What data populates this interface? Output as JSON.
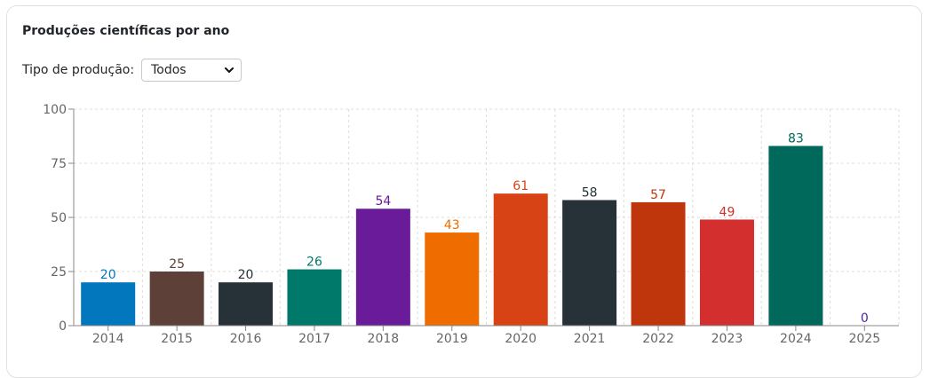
{
  "panel": {
    "title": "Produções científicas por ano",
    "filter_label": "Tipo de produção:",
    "filter_value": "Todos"
  },
  "icons": {
    "select_arrow": "chevron-down-icon"
  },
  "chart_data": {
    "type": "bar",
    "title": "",
    "xlabel": "",
    "ylabel": "",
    "categories": [
      "2014",
      "2015",
      "2016",
      "2017",
      "2018",
      "2019",
      "2020",
      "2021",
      "2022",
      "2023",
      "2024",
      "2025"
    ],
    "values": [
      20,
      25,
      20,
      26,
      54,
      43,
      61,
      58,
      57,
      49,
      83,
      0
    ],
    "colors": [
      "#0277bd",
      "#5d4037",
      "#263238",
      "#00796b",
      "#6a1b9a",
      "#ef6c00",
      "#d84315",
      "#263238",
      "#bf360c",
      "#d32f2f",
      "#00695c",
      "#4527a0"
    ],
    "ylim": [
      0,
      100
    ],
    "yticks": [
      0,
      25,
      50,
      75,
      100
    ],
    "grid": true,
    "data_labels": true,
    "legend": "none"
  }
}
